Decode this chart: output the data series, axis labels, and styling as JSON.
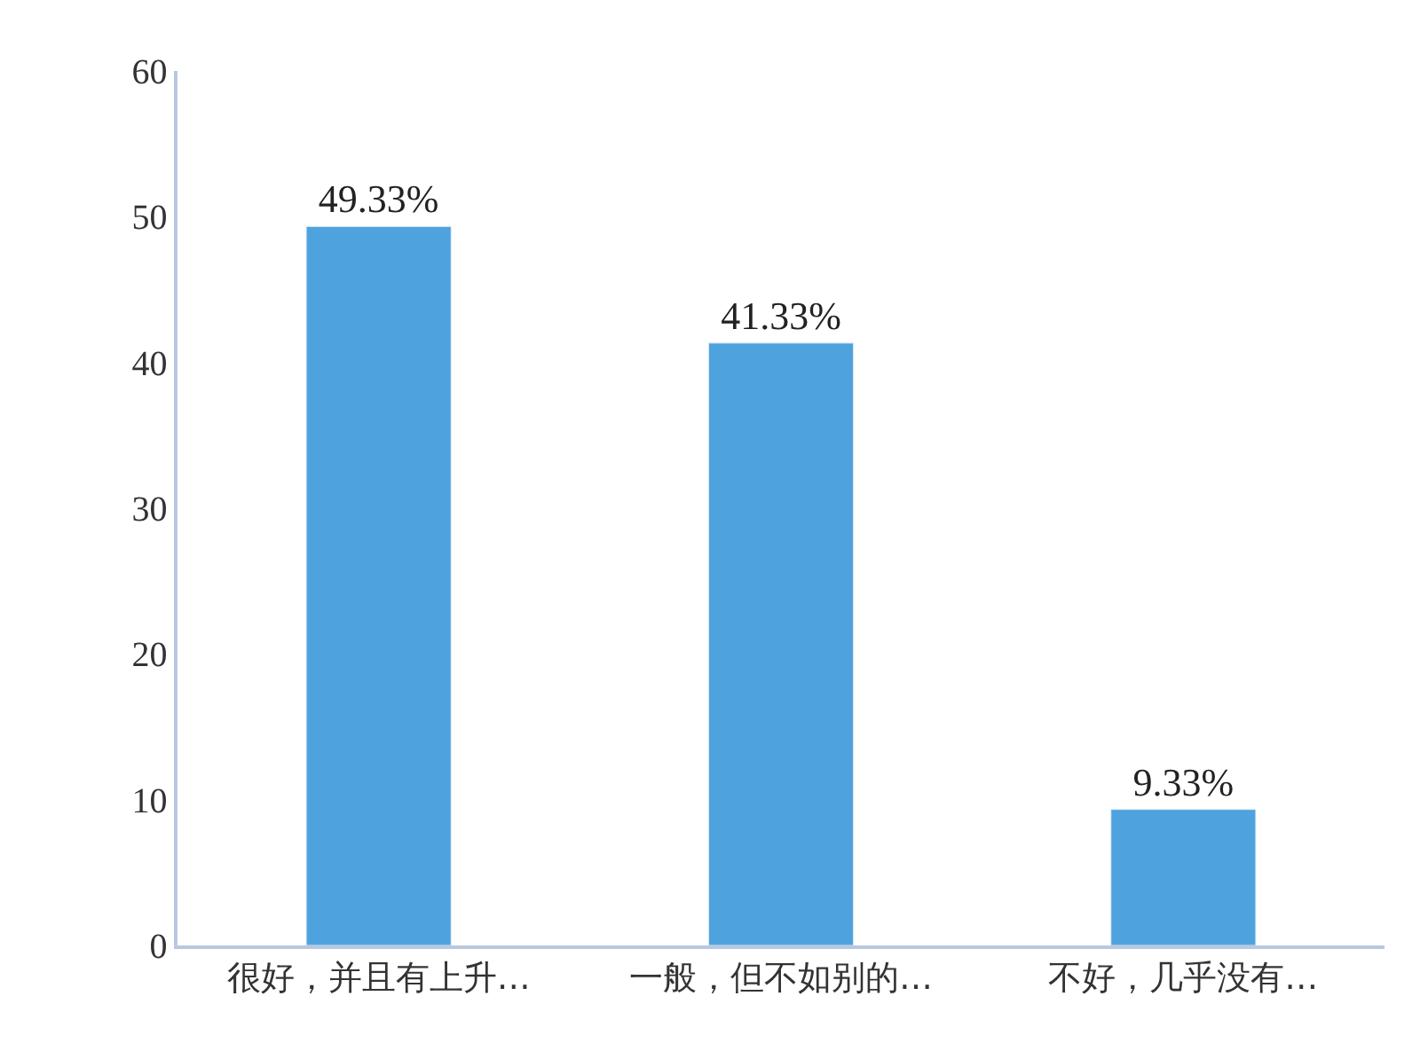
{
  "chart_data": {
    "type": "bar",
    "categories": [
      "很好，并且有上升…",
      "一般，但不如别的…",
      "不好，几乎没有…"
    ],
    "values": [
      49.33,
      41.33,
      9.33
    ],
    "value_labels": [
      "49.33%",
      "41.33%",
      "9.33%"
    ],
    "color": "#4ea3de",
    "ylim": [
      0,
      60
    ],
    "yticks": [
      0,
      10,
      20,
      30,
      40,
      50,
      60
    ]
  }
}
